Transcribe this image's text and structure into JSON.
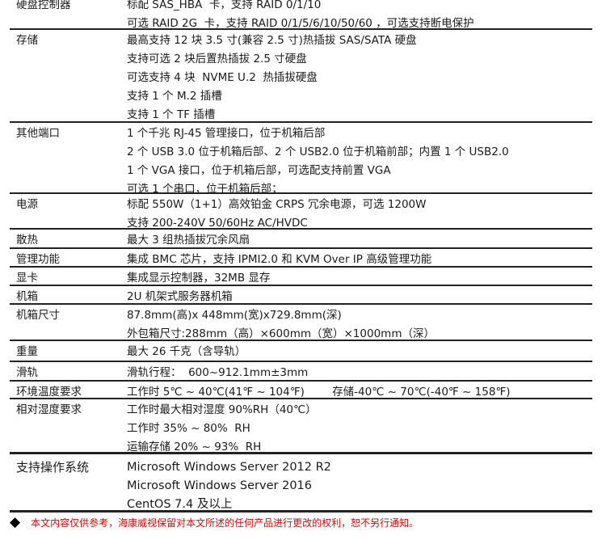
{
  "rows": [
    {
      "label": "硬盘控制器",
      "values": [
        "标配 SAS_HBA  卡，支持 RAID 0/1/10",
        "可选 RAID 2G  卡，支持 RAID 0/1/5/6/10/50/60 ，可选支持断电保护"
      ]
    },
    {
      "label": "存储",
      "values": [
        "最高支持 12 块 3.5 寸(兼容 2.5 寸)热插拔 SAS/SATA 硬盘",
        "支持可选 2 块后置热插拔 2.5 寸硬盘",
        "可选支持 4 块  NVME U.2  热插拔硬盘",
        "支持 1 个 M.2 插槽",
        "支持 1 个 TF 插槽"
      ]
    },
    {
      "label": "其他端口",
      "values": [
        "1 个千兆 RJ-45 管理接口，位于机箱后部",
        "2 个 USB 3.0 位于机箱后部、2 个 USB2.0 位于机箱前部；内置 1 个 USB2.0",
        "1 个 VGA 接口，位于机箱后部，可选配支持前置 VGA",
        "可选 1 个串口，位于机箱后部；"
      ]
    },
    {
      "label": "电源",
      "values": [
        "标配 550W（1+1）高效铂金 CRPS 冗余电源，可选 1200W",
        "支持 200-240V 50/60Hz AC/HVDC"
      ]
    },
    {
      "label": "散热",
      "values": [
        "最大 3 组热插拔冗余风扇"
      ]
    },
    {
      "label": "管理功能",
      "values": [
        "集成 BMC 芯片，支持 IPMI2.0 和 KVM Over IP 高级管理功能"
      ]
    },
    {
      "label": "显卡",
      "values": [
        "集成显示控制器，32MB 显存"
      ]
    },
    {
      "label": "机箱",
      "values": [
        "2U 机架式服务器机箱"
      ]
    },
    {
      "label": "机箱尺寸",
      "values": [
        "87.8mm(高)x 448mm(宽)x729.8mm(深)",
        "外包箱尺寸:288mm（高）×600mm（宽）×1000mm（深）"
      ]
    },
    {
      "label": "重量",
      "values": [
        "最大 26 千克（含导轨）"
      ]
    },
    {
      "label": "滑轨",
      "values": [
        "滑轨行程：  600~912.1mm±3mm"
      ]
    },
    {
      "label": "环境温度要求",
      "values": [
        "工作时 5℃ ~ 40℃(41℉ ~ 104℉)        存储-40℃ ~ 70℃(-40℉ ~ 158℉)"
      ]
    },
    {
      "label": "相对湿度要求",
      "values": [
        "工作时最大相对湿度 90%RH（40℃）",
        "工作时 35% ~ 80%  RH",
        "运输存储 20% ~ 93%  RH"
      ]
    },
    {
      "label": "支持操作系统",
      "values": [
        "Microsoft Windows Server 2012 R2",
        "Microsoft Windows Server 2016",
        "CentOS 7.4 及以上"
      ]
    }
  ],
  "note": {
    "icon": "diamond-bullet",
    "text": "本文内容仅供参考，海康威视保留对本文所述的任何产品进行更改的权利，恕不另行通知。",
    "color": "#e00000"
  }
}
